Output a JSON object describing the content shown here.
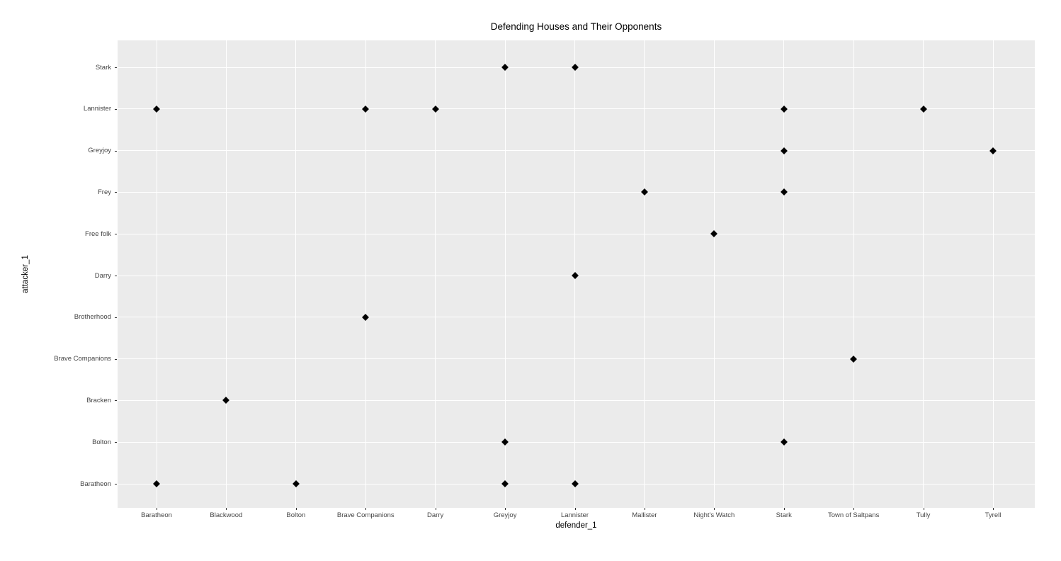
{
  "chart_data": {
    "type": "scatter",
    "title": "Defending Houses and Their Opponents",
    "xlabel": "defender_1",
    "ylabel": "attacker_1",
    "x_categories": [
      "Baratheon",
      "Blackwood",
      "Bolton",
      "Brave Companions",
      "Darry",
      "Greyjoy",
      "Lannister",
      "Mallister",
      "Night's Watch",
      "Stark",
      "Town of Saltpans",
      "Tully",
      "Tyrell"
    ],
    "y_categories_bottom_to_top": [
      "Baratheon",
      "Bolton",
      "Bracken",
      "Brave Companions",
      "Brotherhood",
      "Darry",
      "Free folk",
      "Frey",
      "Greyjoy",
      "Lannister",
      "Stark"
    ],
    "points": [
      {
        "defender": "Greyjoy",
        "attacker": "Stark"
      },
      {
        "defender": "Lannister",
        "attacker": "Stark"
      },
      {
        "defender": "Baratheon",
        "attacker": "Lannister"
      },
      {
        "defender": "Brave Companions",
        "attacker": "Lannister"
      },
      {
        "defender": "Darry",
        "attacker": "Lannister"
      },
      {
        "defender": "Stark",
        "attacker": "Lannister"
      },
      {
        "defender": "Tully",
        "attacker": "Lannister"
      },
      {
        "defender": "Stark",
        "attacker": "Greyjoy"
      },
      {
        "defender": "Tyrell",
        "attacker": "Greyjoy"
      },
      {
        "defender": "Mallister",
        "attacker": "Frey"
      },
      {
        "defender": "Stark",
        "attacker": "Frey"
      },
      {
        "defender": "Night's Watch",
        "attacker": "Free folk"
      },
      {
        "defender": "Lannister",
        "attacker": "Darry"
      },
      {
        "defender": "Brave Companions",
        "attacker": "Brotherhood"
      },
      {
        "defender": "Town of Saltpans",
        "attacker": "Brave Companions"
      },
      {
        "defender": "Blackwood",
        "attacker": "Bracken"
      },
      {
        "defender": "Greyjoy",
        "attacker": "Bolton"
      },
      {
        "defender": "Stark",
        "attacker": "Bolton"
      },
      {
        "defender": "Baratheon",
        "attacker": "Baratheon"
      },
      {
        "defender": "Bolton",
        "attacker": "Baratheon"
      },
      {
        "defender": "Greyjoy",
        "attacker": "Baratheon"
      },
      {
        "defender": "Lannister",
        "attacker": "Baratheon"
      }
    ],
    "marker": "diamond",
    "legend": "none",
    "grid": "major",
    "colors": {
      "panel_background": "#EBEBEB",
      "gridline": "#FFFFFF",
      "point": "#000000",
      "tick_label": "#444444",
      "axis_title": "#000000",
      "title": "#000000"
    }
  }
}
